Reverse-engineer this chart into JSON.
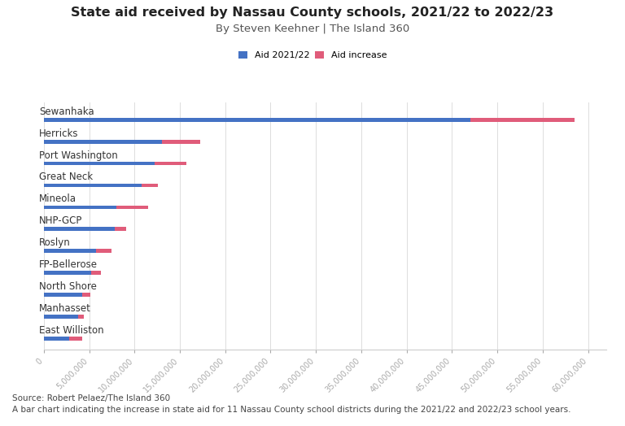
{
  "title": "State aid received by Nassau County schools, 2021/22 to 2022/23",
  "subtitle": "By Steven Keehner | The Island 360",
  "legend_labels": [
    "Aid 2021/22",
    "Aid increase"
  ],
  "bar_color_blue": "#4472C4",
  "bar_color_pink": "#E05C7A",
  "districts": [
    "Sewanhaka",
    "Herricks",
    "Port Washington",
    "Great Neck",
    "Mineola",
    "NHP-GCP",
    "Roslyn",
    "FP-Bellerose",
    "North Shore",
    "Manhasset",
    "East Williston"
  ],
  "aid_2122": [
    47000000,
    13000000,
    12200000,
    10800000,
    8000000,
    7800000,
    5800000,
    5200000,
    4200000,
    3800000,
    2800000
  ],
  "aid_increase": [
    11500000,
    4200000,
    3500000,
    1800000,
    3500000,
    1300000,
    1700000,
    1100000,
    900000,
    650000,
    1400000
  ],
  "xlim": [
    0,
    62000000
  ],
  "xtick_interval": 5000000,
  "source_text": "Source: Robert Pelaez/The Island 360",
  "caption_text": "A bar chart indicating the increase in state aid for 11 Nassau County school districts during the 2021/22 and 2022/23 school years.",
  "background_color": "#FFFFFF"
}
